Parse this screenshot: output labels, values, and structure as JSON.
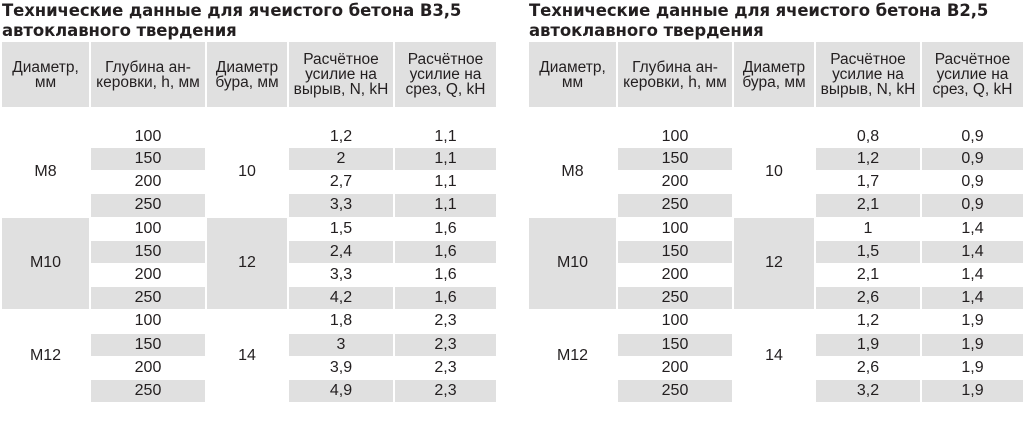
{
  "tables": [
    {
      "title_line1": "Технические данные для ячеистого бетона B3,5",
      "title_line2": "автоклавного твердения",
      "headers": [
        "Диаметр, мм",
        "Глубина ан-керовки, h, мм",
        "Диаметр бура, мм",
        "Расчётное усилие на вырыв, N, kH",
        "Расчётное усилие на срез, Q, kH"
      ],
      "groups": [
        {
          "diameter": "М8",
          "drill": "10",
          "rows": [
            {
              "depth": "100",
              "n": "1,2",
              "q": "1,1"
            },
            {
              "depth": "150",
              "n": "2",
              "q": "1,1"
            },
            {
              "depth": "200",
              "n": "2,7",
              "q": "1,1"
            },
            {
              "depth": "250",
              "n": "3,3",
              "q": "1,1"
            }
          ]
        },
        {
          "diameter": "М10",
          "drill": "12",
          "rows": [
            {
              "depth": "100",
              "n": "1,5",
              "q": "1,6"
            },
            {
              "depth": "150",
              "n": "2,4",
              "q": "1,6"
            },
            {
              "depth": "200",
              "n": "3,3",
              "q": "1,6"
            },
            {
              "depth": "250",
              "n": "4,2",
              "q": "1,6"
            }
          ]
        },
        {
          "diameter": "М12",
          "drill": "14",
          "rows": [
            {
              "depth": "100",
              "n": "1,8",
              "q": "2,3"
            },
            {
              "depth": "150",
              "n": "3",
              "q": "2,3"
            },
            {
              "depth": "200",
              "n": "3,9",
              "q": "2,3"
            },
            {
              "depth": "250",
              "n": "4,9",
              "q": "2,3"
            }
          ]
        }
      ]
    },
    {
      "title_line1": "Технические данные для ячеистого бетона B2,5",
      "title_line2": "автоклавного твердения",
      "headers": [
        "Диаметр, мм",
        "Глубина ан-керовки, h, мм",
        "Диаметр бура, мм",
        "Расчётное усилие на вырыв, N, kH",
        "Расчётное усилие на срез, Q, kH"
      ],
      "groups": [
        {
          "diameter": "М8",
          "drill": "10",
          "rows": [
            {
              "depth": "100",
              "n": "0,8",
              "q": "0,9"
            },
            {
              "depth": "150",
              "n": "1,2",
              "q": "0,9"
            },
            {
              "depth": "200",
              "n": "1,7",
              "q": "0,9"
            },
            {
              "depth": "250",
              "n": "2,1",
              "q": "0,9"
            }
          ]
        },
        {
          "diameter": "М10",
          "drill": "12",
          "rows": [
            {
              "depth": "100",
              "n": "1",
              "q": "1,4"
            },
            {
              "depth": "150",
              "n": "1,5",
              "q": "1,4"
            },
            {
              "depth": "200",
              "n": "2,1",
              "q": "1,4"
            },
            {
              "depth": "250",
              "n": "2,6",
              "q": "1,4"
            }
          ]
        },
        {
          "diameter": "М12",
          "drill": "14",
          "rows": [
            {
              "depth": "100",
              "n": "1,2",
              "q": "1,9"
            },
            {
              "depth": "150",
              "n": "1,9",
              "q": "1,9"
            },
            {
              "depth": "200",
              "n": "2,6",
              "q": "1,9"
            },
            {
              "depth": "250",
              "n": "3,2",
              "q": "1,9"
            }
          ]
        }
      ]
    }
  ]
}
